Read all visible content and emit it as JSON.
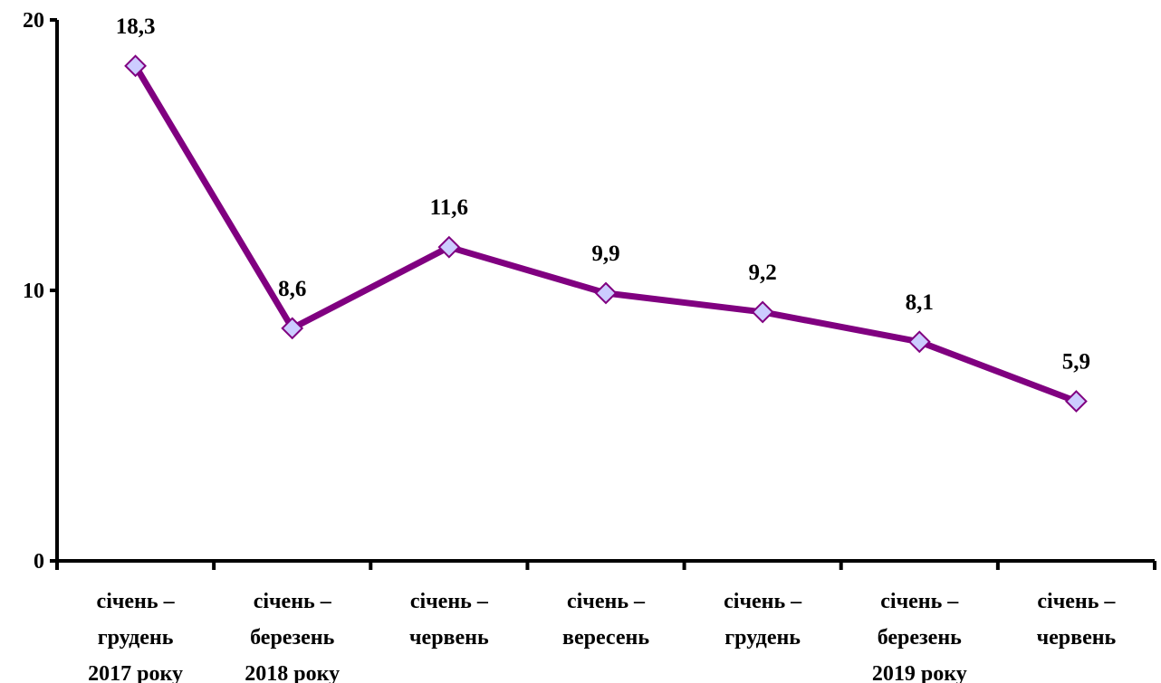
{
  "chart_data": {
    "type": "line",
    "categories": [
      [
        "січень –",
        "грудень",
        "2017 року"
      ],
      [
        "січень –",
        "березень",
        "2018 року"
      ],
      [
        "січень –",
        "червень"
      ],
      [
        "січень –",
        "вересень"
      ],
      [
        "січень –",
        "грудень"
      ],
      [
        "січень –",
        "березень",
        "2019 року"
      ],
      [
        "січень –",
        "червень"
      ]
    ],
    "series": [
      {
        "values": [
          18.3,
          8.6,
          11.6,
          9.9,
          9.2,
          8.1,
          5.9
        ]
      }
    ],
    "data_labels": [
      "18,3",
      "8,6",
      "11,6",
      "9,9",
      "9,2",
      "8,1",
      "5,9"
    ],
    "yticks": [
      "0",
      "10",
      "20"
    ],
    "ylim": [
      0,
      20
    ],
    "grid": false,
    "legend": "none",
    "title": "",
    "xlabel": "",
    "ylabel": "",
    "colors": {
      "line": "#800080",
      "marker_fill": "#ccccff",
      "marker_stroke": "#800080",
      "axis": "#000000"
    },
    "marker": "diamond"
  }
}
